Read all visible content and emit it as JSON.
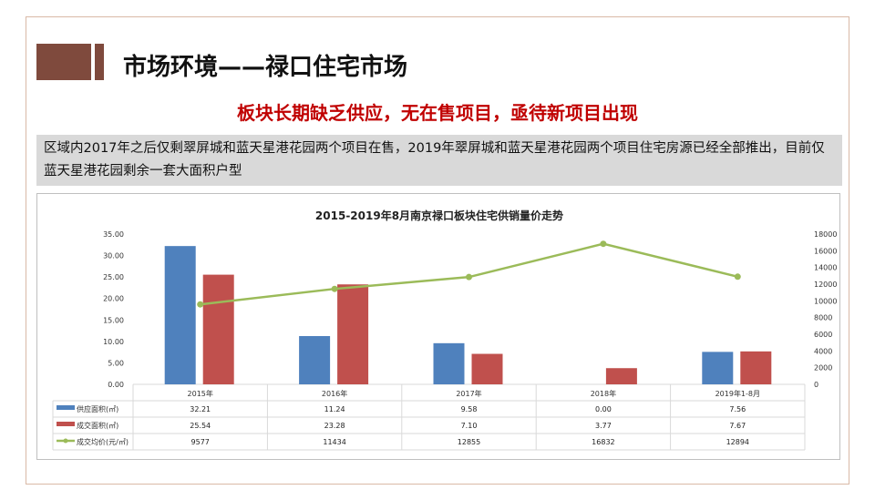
{
  "slide": {
    "title": "市场环境——禄口住宅市场",
    "subtitle": "板块长期缺乏供应，无在售项目，亟待新项目出现",
    "description": "区域内2017年之后仅剩翠屏城和蓝天星港花园两个项目在售，2019年翠屏城和蓝天星港花园两个项目住宅房源已经全部推出，目前仅蓝天星港花园剩余一套大面积户型"
  },
  "chart_data": {
    "type": "bar",
    "title": "2015-2019年8月南京禄口板块住宅供销量价走势",
    "categories": [
      "2015年",
      "2016年",
      "2017年",
      "2018年",
      "2019年1-8月"
    ],
    "ylim": [
      0,
      35
    ],
    "yticks": [
      "0.00",
      "5.00",
      "10.00",
      "15.00",
      "20.00",
      "25.00",
      "30.00",
      "35.00"
    ],
    "y2lim": [
      0,
      18000
    ],
    "y2ticks": [
      "0",
      "2000",
      "4000",
      "6000",
      "8000",
      "10000",
      "12000",
      "14000",
      "16000",
      "18000"
    ],
    "legend": "data-table",
    "series": [
      {
        "name": "供应面积(㎡)",
        "type": "bar",
        "axis": "left",
        "color": "#4f81bd",
        "values": [
          32.21,
          11.24,
          9.58,
          0.0,
          7.56
        ],
        "labels": [
          "32.21",
          "11.24",
          "9.58",
          "0.00",
          "7.56"
        ]
      },
      {
        "name": "成交面积(㎡)",
        "type": "bar",
        "axis": "left",
        "color": "#c0504d",
        "values": [
          25.54,
          23.28,
          7.1,
          3.77,
          7.67
        ],
        "labels": [
          "25.54",
          "23.28",
          "7.10",
          "3.77",
          "7.67"
        ]
      },
      {
        "name": "成交均价(元/㎡)",
        "type": "line",
        "axis": "right",
        "color": "#9bbb59",
        "values": [
          9577,
          11434,
          12855,
          16832,
          12894
        ],
        "labels": [
          "9577",
          "11434",
          "12855",
          "16832",
          "12894"
        ]
      }
    ]
  }
}
